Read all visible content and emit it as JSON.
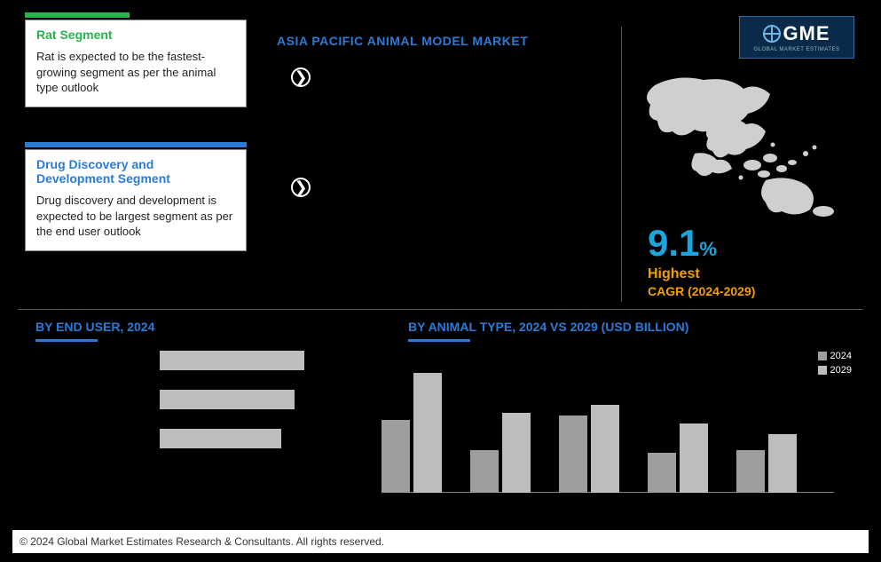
{
  "page_title": "ASIA PACIFIC ANIMAL MODEL MARKET",
  "logo": {
    "text": "GME",
    "sub": "GLOBAL MARKET ESTIMATES"
  },
  "card1": {
    "bar_color": "#2bb24c",
    "title": "Rat Segment",
    "title_color": "#2bb24c",
    "body": "Rat is expected to be the fastest-growing segment as per the animal type outlook"
  },
  "card2": {
    "bar_color": "#2b7bd6",
    "title": "Drug Discovery and Development Segment",
    "title_color": "#2b7bd6",
    "body": "Drug discovery and development is expected to be largest segment as per the end user outlook"
  },
  "cagr": {
    "value": "9.1",
    "pct": "%",
    "label1": "Highest",
    "label2": "CAGR (2024-2029)",
    "value_color": "#1da5e0",
    "label_color": "#f0a000"
  },
  "section_enduser_title": "BY  END USER, 2024",
  "section_animal_title": "BY ANIMAL TYPE, 2024 VS 2029 (USD BILLION)",
  "enduser_chart": {
    "type": "bar_horizontal",
    "bar_color": "#bdbdbd",
    "cap_color": "#000000",
    "max": 100,
    "rows": [
      {
        "label": "",
        "value": 86,
        "cap": 12
      },
      {
        "label": "",
        "value": 80,
        "cap": 0
      },
      {
        "label": "",
        "value": 72,
        "cap": 22
      }
    ]
  },
  "animal_chart": {
    "type": "grouped_bar",
    "series_labels": [
      "2024",
      "2029"
    ],
    "colors": [
      "#9e9e9e",
      "#bdbdbd"
    ],
    "ymax": 100,
    "groups": [
      {
        "label": "",
        "vals": [
          55,
          90
        ]
      },
      {
        "label": "",
        "vals": [
          32,
          60
        ]
      },
      {
        "label": "",
        "vals": [
          58,
          66
        ]
      },
      {
        "label": "",
        "vals": [
          30,
          52
        ]
      },
      {
        "label": "",
        "vals": [
          32,
          44
        ]
      }
    ]
  },
  "copyright": "© 2024 Global Market Estimates Research & Consultants. All rights reserved."
}
